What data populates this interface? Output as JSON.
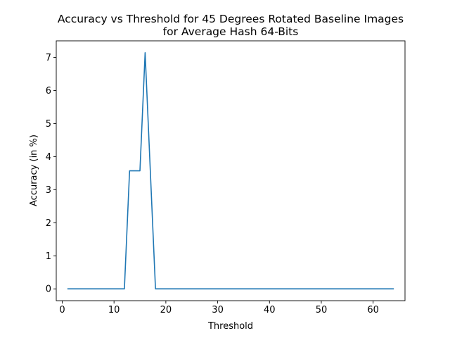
{
  "chart_data": {
    "type": "line",
    "title": "Accuracy vs Threshold for 45 Degrees Rotated Baseline Images",
    "subtitle": "for Average Hash 64-Bits",
    "xlabel": "Threshold",
    "ylabel": "Accuracy (in %)",
    "xlim": [
      -1.15,
      66.15
    ],
    "ylim": [
      -0.357,
      7.5
    ],
    "xticks": [
      0,
      10,
      20,
      30,
      40,
      50,
      60
    ],
    "yticks": [
      0,
      1,
      2,
      3,
      4,
      5,
      6,
      7
    ],
    "grid": false,
    "line_color": "#1f77b4",
    "series": [
      {
        "x": [
          1,
          2,
          3,
          4,
          5,
          6,
          7,
          8,
          9,
          10,
          11,
          12,
          13,
          14,
          15,
          16,
          17,
          18,
          19,
          20,
          21,
          22,
          23,
          24,
          25,
          26,
          27,
          28,
          29,
          30,
          31,
          32,
          33,
          34,
          35,
          36,
          37,
          38,
          39,
          40,
          41,
          42,
          43,
          44,
          45,
          46,
          47,
          48,
          49,
          50,
          51,
          52,
          53,
          54,
          55,
          56,
          57,
          58,
          59,
          60,
          61,
          62,
          63,
          64
        ],
        "values": [
          0,
          0,
          0,
          0,
          0,
          0,
          0,
          0,
          0,
          0,
          0,
          0,
          3.571,
          3.571,
          3.571,
          7.143,
          3.571,
          0,
          0,
          0,
          0,
          0,
          0,
          0,
          0,
          0,
          0,
          0,
          0,
          0,
          0,
          0,
          0,
          0,
          0,
          0,
          0,
          0,
          0,
          0,
          0,
          0,
          0,
          0,
          0,
          0,
          0,
          0,
          0,
          0,
          0,
          0,
          0,
          0,
          0,
          0,
          0,
          0,
          0,
          0,
          0,
          0,
          0,
          0
        ]
      }
    ]
  }
}
